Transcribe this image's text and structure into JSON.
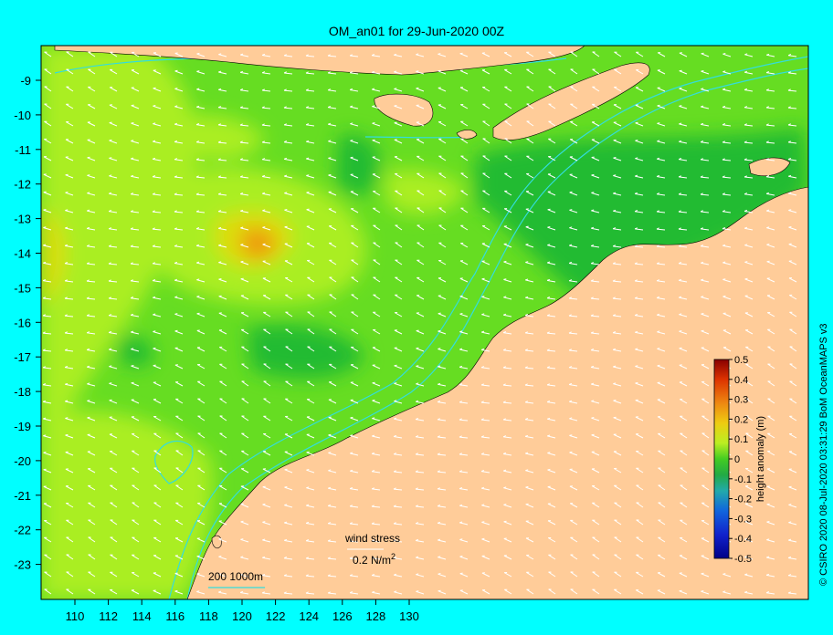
{
  "title": "OM_an01 for 29-Jun-2020 00Z",
  "credit": "© CSIRO 2020  08-Jul-2020 03:31:29 BoM OceanMAPS v3",
  "x_ticks": [
    "110",
    "112",
    "114",
    "116",
    "118",
    "120",
    "122",
    "124",
    "126",
    "128",
    "130"
  ],
  "y_ticks": [
    "-9",
    "-10",
    "-11",
    "-12",
    "-13",
    "-14",
    "-15",
    "-16",
    "-17",
    "-18",
    "-19",
    "-20",
    "-21",
    "-22",
    "-23"
  ],
  "legend": {
    "label": "height anomaly (m)",
    "ticks": [
      "0.5",
      "0.4",
      "0.3",
      "0.2",
      "0.1",
      "0",
      "-0.1",
      "-0.2",
      "-0.3",
      "-0.4",
      "-0.5"
    ]
  },
  "wind": {
    "label": "wind stress",
    "scale": "0.2 N/m",
    "superscript": "2"
  },
  "depth_label": "200  1000m",
  "colors": {
    "background": "#00ffff",
    "land": "#ffcc99",
    "ocean_base": "#66dd22",
    "neg_anomaly": "#22bb33",
    "pos_anomaly": "#aaee22",
    "yellow": "#dddd11",
    "orange": "#ee9911",
    "contour": "#33dddd",
    "arrow": "#ffffff"
  }
}
